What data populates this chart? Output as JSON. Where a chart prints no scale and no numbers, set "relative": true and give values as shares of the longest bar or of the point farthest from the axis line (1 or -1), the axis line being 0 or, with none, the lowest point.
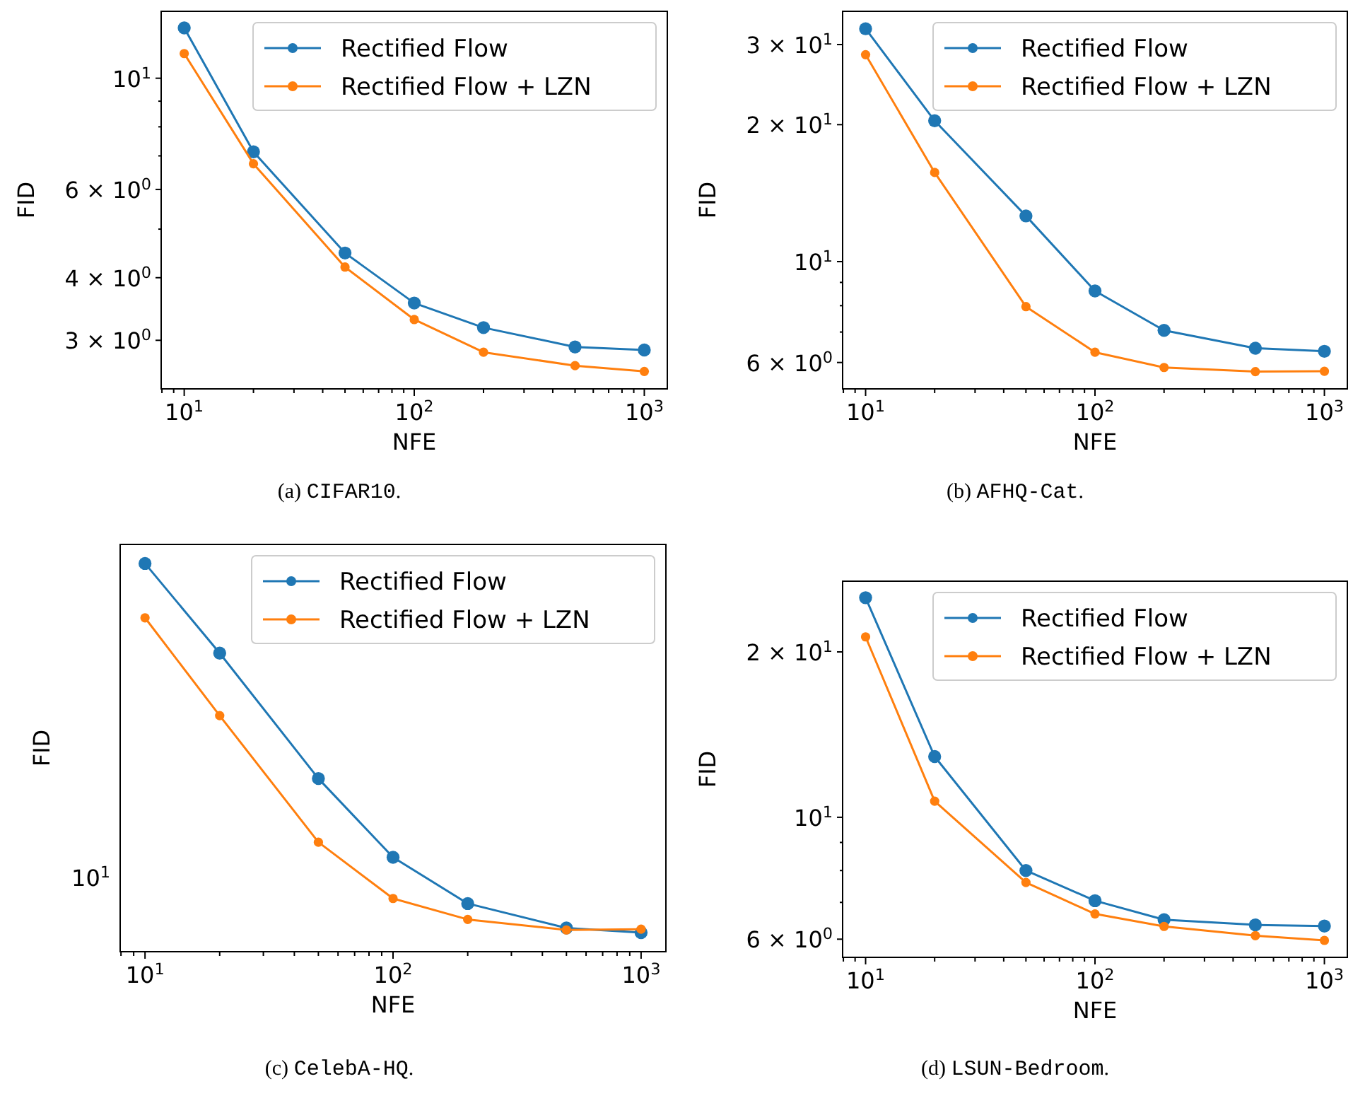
{
  "chart_data": [
    {
      "type": "line",
      "xlabel": "NFE",
      "ylabel": "FID",
      "log": "xy",
      "legend": "top right",
      "marker": "circle",
      "line_style": "solid",
      "xlim": [
        7.94,
        1259
      ],
      "xticks": [
        {
          "value": 8,
          "label": null
        },
        {
          "value": 9,
          "label": null
        },
        {
          "value": 10,
          "label": "10$^{1}$"
        },
        {
          "value": 20,
          "label": null
        },
        {
          "value": 30,
          "label": null
        },
        {
          "value": 40,
          "label": null
        },
        {
          "value": 50,
          "label": null
        },
        {
          "value": 60,
          "label": null
        },
        {
          "value": 70,
          "label": null
        },
        {
          "value": 80,
          "label": null
        },
        {
          "value": 90,
          "label": null
        },
        {
          "value": 100,
          "label": "10$^{2}$"
        },
        {
          "value": 200,
          "label": null
        },
        {
          "value": 300,
          "label": null
        },
        {
          "value": 400,
          "label": null
        },
        {
          "value": 500,
          "label": null
        },
        {
          "value": 600,
          "label": null
        },
        {
          "value": 700,
          "label": null
        },
        {
          "value": 800,
          "label": null
        },
        {
          "value": 900,
          "label": null
        },
        {
          "value": 1000,
          "label": "10$^{3}$"
        }
      ],
      "ylim": [
        2.4,
        13.6
      ],
      "yticks": [
        {
          "value": 3,
          "label": "3 × 10$^{0}$"
        },
        {
          "value": 4,
          "label": "4 × 10$^{0}$"
        },
        {
          "value": 5,
          "label": null
        },
        {
          "value": 6,
          "label": "6 × 10$^{0}$"
        },
        {
          "value": 7,
          "label": null
        },
        {
          "value": 8,
          "label": null
        },
        {
          "value": 9,
          "label": null
        },
        {
          "value": 10,
          "label": "10$^{1}$"
        }
      ],
      "x": [
        10,
        20,
        50,
        100,
        200,
        500,
        1000
      ],
      "series": [
        {
          "name": "Rectified Flow",
          "color": "#1f77b4",
          "values": [
            12.6,
            7.13,
            4.48,
            3.56,
            3.18,
            2.91,
            2.87
          ]
        },
        {
          "name": "Rectified Flow + LZN",
          "color": "#ff7f0e",
          "values": [
            11.2,
            6.75,
            4.2,
            3.3,
            2.84,
            2.67,
            2.6
          ]
        }
      ],
      "annotations": [
        "(a) CIFAR10."
      ]
    },
    {
      "type": "line",
      "xlabel": "NFE",
      "ylabel": "FID",
      "log": "xy",
      "legend": "top right",
      "marker": "circle",
      "line_style": "solid",
      "xlim": [
        7.94,
        1259
      ],
      "xticks": [
        {
          "value": 8,
          "label": null
        },
        {
          "value": 9,
          "label": null
        },
        {
          "value": 10,
          "label": "10$^{1}$"
        },
        {
          "value": 20,
          "label": null
        },
        {
          "value": 30,
          "label": null
        },
        {
          "value": 40,
          "label": null
        },
        {
          "value": 50,
          "label": null
        },
        {
          "value": 60,
          "label": null
        },
        {
          "value": 70,
          "label": null
        },
        {
          "value": 80,
          "label": null
        },
        {
          "value": 90,
          "label": null
        },
        {
          "value": 100,
          "label": "10$^{2}$"
        },
        {
          "value": 200,
          "label": null
        },
        {
          "value": 300,
          "label": null
        },
        {
          "value": 400,
          "label": null
        },
        {
          "value": 500,
          "label": null
        },
        {
          "value": 600,
          "label": null
        },
        {
          "value": 700,
          "label": null
        },
        {
          "value": 800,
          "label": null
        },
        {
          "value": 900,
          "label": null
        },
        {
          "value": 1000,
          "label": "10$^{3}$"
        }
      ],
      "ylim": [
        5.25,
        35.5
      ],
      "yticks": [
        {
          "value": 6,
          "label": "6 × 10$^{0}$"
        },
        {
          "value": 7,
          "label": null
        },
        {
          "value": 8,
          "label": null
        },
        {
          "value": 9,
          "label": null
        },
        {
          "value": 10,
          "label": "10$^{1}$"
        },
        {
          "value": 20,
          "label": "2 × 10$^{1}$"
        },
        {
          "value": 30,
          "label": "3 × 10$^{1}$"
        }
      ],
      "x": [
        10,
        20,
        50,
        100,
        200,
        500,
        1000
      ],
      "series": [
        {
          "name": "Rectified Flow",
          "color": "#1f77b4",
          "values": [
            32.5,
            20.4,
            12.6,
            8.62,
            7.06,
            6.45,
            6.35
          ]
        },
        {
          "name": "Rectified Flow + LZN",
          "color": "#ff7f0e",
          "values": [
            28.5,
            15.7,
            7.96,
            6.32,
            5.85,
            5.73,
            5.74
          ]
        }
      ],
      "annotations": [
        "(b) AFHQ-Cat."
      ]
    },
    {
      "type": "line",
      "xlabel": "NFE",
      "ylabel": "FID",
      "legend": "top right",
      "marker": "circle",
      "line_style": "solid",
      "xlim": [
        7.94,
        1259
      ],
      "xticks": [
        {
          "value": 8,
          "label": null
        },
        {
          "value": 9,
          "label": null
        },
        {
          "value": 10,
          "label": "10$^{1}$"
        },
        {
          "value": 20,
          "label": null
        },
        {
          "value": 30,
          "label": null
        },
        {
          "value": 40,
          "label": null
        },
        {
          "value": 50,
          "label": null
        },
        {
          "value": 60,
          "label": null
        },
        {
          "value": 70,
          "label": null
        },
        {
          "value": 80,
          "label": null
        },
        {
          "value": 90,
          "label": null
        },
        {
          "value": 100,
          "label": "10$^{2}$"
        },
        {
          "value": 200,
          "label": null
        },
        {
          "value": 300,
          "label": null
        },
        {
          "value": 400,
          "label": null
        },
        {
          "value": 500,
          "label": null
        },
        {
          "value": 600,
          "label": null
        },
        {
          "value": 700,
          "label": null
        },
        {
          "value": 800,
          "label": null
        },
        {
          "value": 900,
          "label": null
        },
        {
          "value": 1000,
          "label": "10$^{3}$"
        }
      ],
      "relative": true,
      "log": "x",
      "x": [
        10,
        20,
        50,
        100,
        200,
        500,
        1000
      ],
      "series": [
        {
          "name": "Rectified Flow",
          "color": "#1f77b4",
          "values": [
            1,
            0.769,
            0.446,
            0.243,
            0.124,
            0.061,
            0.049
          ]
        },
        {
          "name": "Rectified Flow + LZN",
          "color": "#ff7f0e",
          "values": [
            0.86,
            0.608,
            0.282,
            0.137,
            0.083,
            0.056,
            0.058
          ]
        }
      ],
      "annotations": [
        "(c) CelebA-HQ.",
        "10$^{1}$"
      ]
    },
    {
      "type": "line",
      "xlabel": "NFE",
      "ylabel": "FID",
      "log": "xy",
      "legend": "top right",
      "marker": "circle",
      "line_style": "solid",
      "xlim": [
        7.94,
        1259
      ],
      "xticks": [
        {
          "value": 8,
          "label": null
        },
        {
          "value": 9,
          "label": null
        },
        {
          "value": 10,
          "label": "10$^{1}$"
        },
        {
          "value": 20,
          "label": null
        },
        {
          "value": 30,
          "label": null
        },
        {
          "value": 40,
          "label": null
        },
        {
          "value": 50,
          "label": null
        },
        {
          "value": 60,
          "label": null
        },
        {
          "value": 70,
          "label": null
        },
        {
          "value": 80,
          "label": null
        },
        {
          "value": 90,
          "label": null
        },
        {
          "value": 100,
          "label": "10$^{2}$"
        },
        {
          "value": 200,
          "label": null
        },
        {
          "value": 300,
          "label": null
        },
        {
          "value": 400,
          "label": null
        },
        {
          "value": 500,
          "label": null
        },
        {
          "value": 600,
          "label": null
        },
        {
          "value": 700,
          "label": null
        },
        {
          "value": 800,
          "label": null
        },
        {
          "value": 900,
          "label": null
        },
        {
          "value": 1000,
          "label": "10$^{3}$"
        }
      ],
      "ylim": [
        5.56,
        26.9
      ],
      "yticks": [
        {
          "value": 6,
          "label": "6 × 10$^{0}$"
        },
        {
          "value": 7,
          "label": null
        },
        {
          "value": 8,
          "label": null
        },
        {
          "value": 9,
          "label": null
        },
        {
          "value": 10,
          "label": "10$^{1}$"
        },
        {
          "value": 20,
          "label": "2 × 10$^{1}$"
        }
      ],
      "x": [
        10,
        20,
        50,
        100,
        200,
        500,
        1000
      ],
      "series": [
        {
          "name": "Rectified Flow",
          "color": "#1f77b4",
          "values": [
            25.1,
            12.9,
            8.0,
            7.05,
            6.51,
            6.37,
            6.34
          ]
        },
        {
          "name": "Rectified Flow + LZN",
          "color": "#ff7f0e",
          "values": [
            21.3,
            10.7,
            7.61,
            6.67,
            6.33,
            6.09,
            5.97
          ]
        }
      ],
      "annotations": [
        "(d) LSUN-Bedroom."
      ]
    }
  ]
}
